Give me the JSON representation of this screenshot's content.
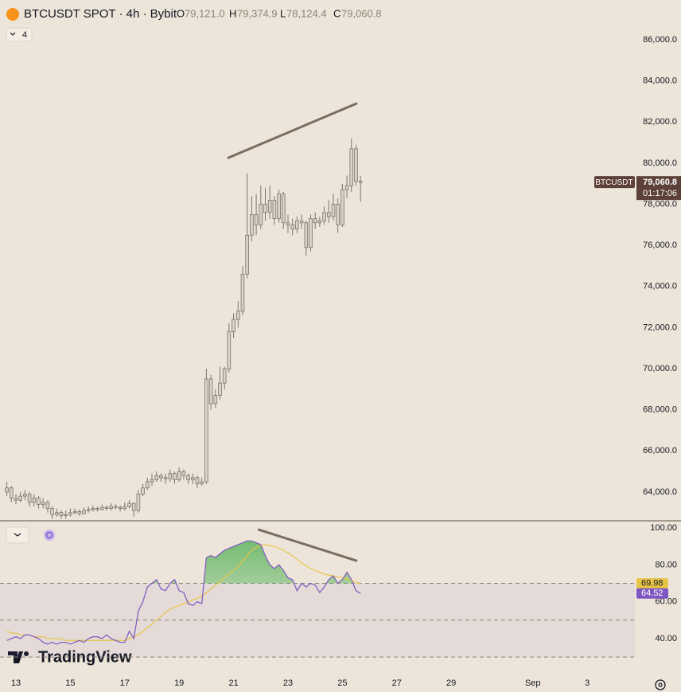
{
  "header": {
    "symbol": "BTCUSDT SPOT · 4h · Bybit",
    "ohlc": [
      {
        "label": "O",
        "value": "79,121.0"
      },
      {
        "label": "H",
        "value": "79,374.9"
      },
      {
        "label": "L",
        "value": "78,124.4"
      },
      {
        "label": "C",
        "value": "79,060.8"
      }
    ],
    "indicator_count": "4",
    "watermark": "TradingView"
  },
  "chart_data": [
    {
      "type": "candlestick",
      "x": [
        12.667,
        12.833,
        13,
        13.167,
        13.333,
        13.5,
        13.667,
        13.833,
        14,
        14.167,
        14.333,
        14.5,
        14.667,
        14.833,
        15,
        15.167,
        15.333,
        15.5,
        15.667,
        15.833,
        16,
        16.167,
        16.333,
        16.5,
        16.667,
        16.833,
        17,
        17.167,
        17.333,
        17.5,
        17.667,
        17.833,
        18,
        18.167,
        18.333,
        18.5,
        18.667,
        18.833,
        19,
        19.167,
        19.333,
        19.5,
        19.667,
        19.833,
        20,
        20.167,
        20.333,
        20.5,
        20.667,
        20.833,
        21,
        21.167,
        21.333,
        21.5,
        21.667,
        21.833,
        22,
        22.167,
        22.333,
        22.5,
        22.667,
        22.833,
        23,
        23.167,
        23.333,
        23.5,
        23.667,
        23.833,
        24,
        24.167,
        24.333,
        24.5,
        24.667,
        24.833,
        25,
        25.167,
        25.333,
        25.5,
        25.667
      ],
      "open": [
        64000,
        64200,
        63700,
        63600,
        63800,
        63900,
        63500,
        63700,
        63400,
        63500,
        63200,
        62900,
        63000,
        62850,
        62900,
        63000,
        63050,
        62950,
        63100,
        63150,
        63200,
        63150,
        63250,
        63200,
        63300,
        63250,
        63200,
        63300,
        63450,
        63100,
        63900,
        64200,
        64500,
        64600,
        64800,
        64700,
        64650,
        64900,
        64600,
        65000,
        64800,
        64600,
        64700,
        64400,
        64500,
        69500,
        68300,
        68700,
        69300,
        70000,
        71800,
        72400,
        72800,
        74600,
        76500,
        77500,
        77000,
        78000,
        77600,
        78200,
        77300,
        78500,
        77100,
        77000,
        76800,
        77200,
        77100,
        75900,
        77300,
        77100,
        77200,
        77600,
        77400,
        78000,
        77000,
        78700,
        78900,
        80700,
        79121
      ],
      "high": [
        64500,
        64300,
        63900,
        64000,
        64100,
        64000,
        63900,
        63800,
        63700,
        63600,
        63300,
        63200,
        63100,
        63100,
        63200,
        63200,
        63150,
        63250,
        63300,
        63350,
        63300,
        63400,
        63350,
        63450,
        63400,
        63350,
        63500,
        63600,
        63500,
        64100,
        64400,
        64700,
        64900,
        65000,
        64900,
        64900,
        65100,
        65000,
        65200,
        65100,
        64900,
        64900,
        64800,
        64700,
        70000,
        69700,
        69000,
        70100,
        70100,
        72200,
        72700,
        73300,
        75000,
        79500,
        78400,
        78500,
        78900,
        78800,
        78900,
        78400,
        78700,
        78600,
        77500,
        77300,
        77400,
        77500,
        77200,
        77500,
        77600,
        77400,
        77900,
        78200,
        78500,
        78300,
        79000,
        79400,
        81200,
        80900,
        79374.9
      ],
      "low": [
        63800,
        63500,
        63400,
        63500,
        63600,
        63300,
        63300,
        63200,
        63200,
        63000,
        62700,
        62800,
        62700,
        62700,
        62800,
        62900,
        62850,
        62900,
        63000,
        63050,
        63050,
        63100,
        63100,
        63100,
        63150,
        63050,
        63100,
        63200,
        62800,
        63000,
        63800,
        64100,
        64300,
        64500,
        64500,
        64400,
        64500,
        64400,
        64500,
        64600,
        64400,
        64400,
        64200,
        64300,
        64400,
        68000,
        68100,
        68500,
        69000,
        69800,
        71500,
        72000,
        72600,
        74400,
        76200,
        76500,
        76800,
        77200,
        77300,
        77000,
        77100,
        76800,
        76600,
        76500,
        76600,
        76800,
        75500,
        75700,
        76800,
        76900,
        77000,
        77100,
        77200,
        76600,
        76900,
        78300,
        78600,
        78900,
        78124.4
      ],
      "close": [
        64200,
        63700,
        63600,
        63800,
        63900,
        63500,
        63700,
        63400,
        63500,
        63200,
        62900,
        63000,
        62850,
        62900,
        63000,
        63050,
        62950,
        63100,
        63150,
        63200,
        63150,
        63250,
        63200,
        63300,
        63250,
        63200,
        63300,
        63450,
        63100,
        63900,
        64200,
        64500,
        64600,
        64800,
        64700,
        64650,
        64900,
        64600,
        65000,
        64800,
        64600,
        64700,
        64400,
        64500,
        69500,
        68300,
        68700,
        69300,
        70000,
        71800,
        72400,
        72800,
        74600,
        76500,
        77500,
        77000,
        78000,
        77600,
        78200,
        77300,
        78500,
        77100,
        77000,
        76800,
        77200,
        77100,
        75900,
        77300,
        77100,
        77200,
        77600,
        77400,
        78000,
        77000,
        78700,
        78900,
        80700,
        79121,
        79060.8
      ],
      "candle_color": "#d9d2c6",
      "wick_color": "#7d7468",
      "xlim": [
        12.415,
        35.75
      ],
      "xticks": [
        13,
        15,
        17,
        19,
        21,
        23,
        25,
        27,
        29,
        {
          "value": 32,
          "label": "Sep"
        },
        {
          "value": 34,
          "label": "3"
        }
      ],
      "ylim": [
        62640,
        87940
      ],
      "yticks": [
        {
          "value": 64000,
          "label": "64,000.0"
        },
        {
          "value": 66000,
          "label": "66,000.0"
        },
        {
          "value": 68000,
          "label": "68,000.0"
        },
        {
          "value": 70000,
          "label": "70,000.0"
        },
        {
          "value": 72000,
          "label": "72,000.0"
        },
        {
          "value": 74000,
          "label": "74,000.0"
        },
        {
          "value": 76000,
          "label": "76,000.0"
        },
        {
          "value": 78000,
          "label": "78,000.0"
        },
        {
          "value": 80000,
          "label": "80,000.0"
        },
        {
          "value": 82000,
          "label": "82,000.0"
        },
        {
          "value": 84000,
          "label": "84,000.0"
        },
        {
          "value": 86000,
          "label": "86,000.0"
        }
      ],
      "trendline": {
        "x": [
          20.81,
          25.51
        ],
        "y": [
          80264,
          82900
        ],
        "color": "#7a6e62"
      },
      "last_price": {
        "value": 79060.8,
        "label": "79,060.8"
      },
      "symbol_tag": "BTCUSDT",
      "countdown": "01:17:06",
      "tag_color": "#5d4037"
    },
    {
      "type": "line",
      "series": [
        {
          "color": "#7e57c2",
          "values": [
            39,
            40,
            41,
            40,
            42,
            42,
            41,
            40,
            38,
            37,
            38,
            37,
            38,
            38,
            37,
            38,
            39,
            38,
            40,
            41,
            41,
            40,
            42,
            40,
            39,
            38,
            38,
            44,
            40,
            55,
            60,
            68,
            70,
            72,
            67,
            66,
            70,
            72,
            66,
            65,
            59,
            58,
            60,
            59,
            84,
            85,
            84,
            86,
            88,
            89,
            90,
            91,
            92,
            93,
            93,
            92,
            91,
            85,
            80,
            78,
            80,
            77,
            73,
            72,
            66,
            70,
            68,
            70,
            69,
            65,
            68,
            72,
            74,
            70,
            72,
            76,
            72,
            66,
            64.52
          ]
        },
        {
          "color": "#e8c547",
          "values": [
            44,
            43,
            43,
            42,
            42,
            42,
            41,
            41,
            41,
            40,
            40,
            40,
            40,
            39,
            39,
            39,
            39,
            39,
            39,
            39,
            39,
            39,
            39,
            39,
            39,
            39,
            39,
            40,
            41,
            42,
            44,
            46,
            48,
            50,
            52,
            54,
            56,
            57,
            58,
            59,
            60,
            61,
            62,
            63,
            65,
            67,
            69,
            71,
            73,
            75,
            77,
            79,
            82,
            85,
            88,
            89.5,
            90.5,
            91,
            90.5,
            90,
            89,
            88,
            86.5,
            85,
            83,
            81,
            79.5,
            78,
            77,
            76,
            75,
            74.5,
            74,
            73.5,
            73,
            72.5,
            71.5,
            70.5,
            69.98
          ]
        }
      ],
      "levels": [
        70,
        50,
        30
      ],
      "band_color": "#7e57c2",
      "overbought_color": "#4caf50",
      "ylim": [
        21.4,
        103.5
      ],
      "yticks": [
        {
          "value": 40,
          "label": "40.00"
        },
        {
          "value": 60,
          "label": "60.00"
        },
        {
          "value": 80,
          "label": "80.00"
        },
        {
          "value": 100,
          "label": "100.00"
        }
      ],
      "trendline": {
        "x": [
          21.93,
          25.51
        ],
        "y": [
          99.1,
          82.3
        ],
        "color": "#7a6e62"
      }
    }
  ]
}
